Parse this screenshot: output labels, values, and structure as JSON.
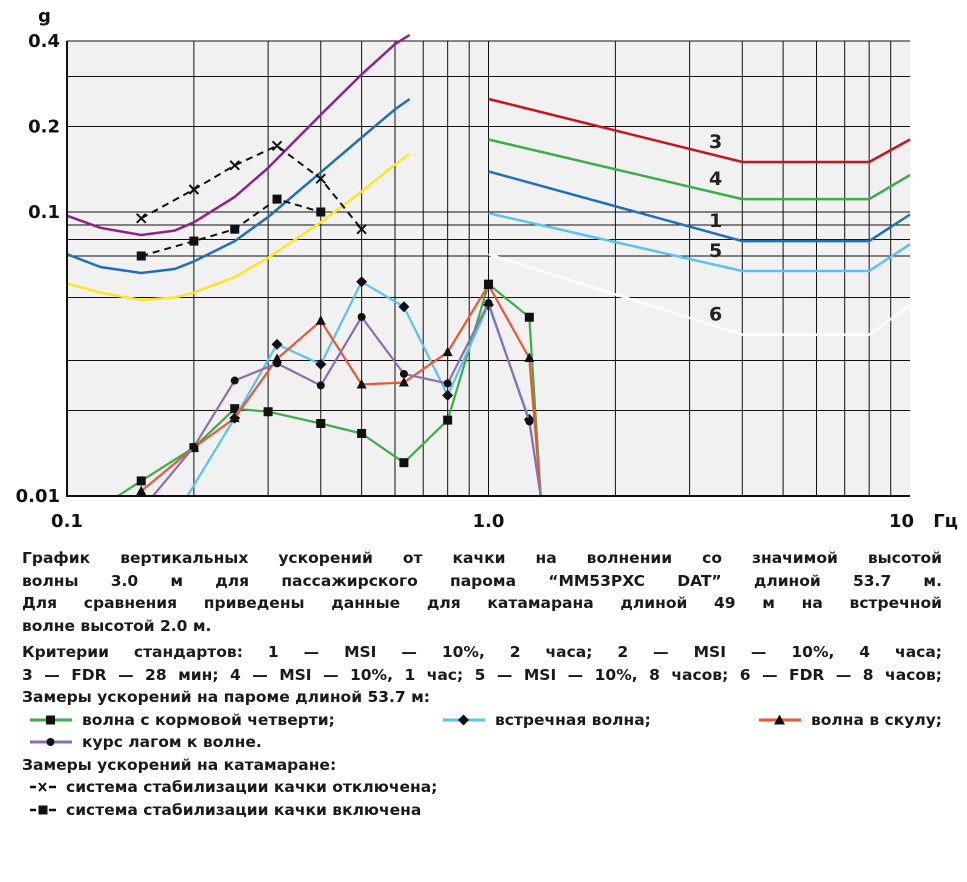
{
  "chart_data": {
    "type": "line",
    "y_unit": "g",
    "x_unit": "Гц",
    "x_scale": "log",
    "y_scale": "log",
    "xlim": [
      0.1,
      10
    ],
    "ylim": [
      0.01,
      0.4
    ],
    "x_ticks": [
      {
        "value": 0.1,
        "label": "0.1"
      },
      {
        "value": 1.0,
        "label": "1.0"
      },
      {
        "value": 10,
        "label": "10"
      }
    ],
    "y_ticks": [
      {
        "value": 0.4,
        "label": "0.4"
      },
      {
        "value": 0.2,
        "label": "0.2"
      },
      {
        "value": 0.1,
        "label": "0.1"
      },
      {
        "value": 0.01,
        "label": "0.01"
      }
    ],
    "criteria": [
      {
        "label": "3",
        "color": "#c8141e",
        "x": [
          1.0,
          4.0,
          8.0,
          10.0
        ],
        "y": [
          0.25,
          0.15,
          0.15,
          0.18
        ]
      },
      {
        "label": "4",
        "color": "#3aae49",
        "x": [
          1.0,
          4.0,
          8.0,
          10.0
        ],
        "y": [
          0.18,
          0.111,
          0.111,
          0.135
        ]
      },
      {
        "label": "1",
        "color": "#1f6fba",
        "x": [
          1.0,
          4.0,
          8.0,
          10.0
        ],
        "y": [
          0.139,
          0.079,
          0.079,
          0.098
        ]
      },
      {
        "label": "5",
        "color": "#5ac3ee",
        "x": [
          1.0,
          4.0,
          8.0,
          10.0
        ],
        "y": [
          0.099,
          0.062,
          0.062,
          0.077
        ]
      },
      {
        "label": "6",
        "color": "#ffffff",
        "x": [
          1.0,
          4.0,
          8.0,
          10.0
        ],
        "y": [
          0.071,
          0.037,
          0.037,
          0.047
        ]
      }
    ],
    "curves": [
      {
        "color": "#8e2389",
        "x": [
          0.1,
          0.12,
          0.15,
          0.18,
          0.2,
          0.25,
          0.3,
          0.4,
          0.5,
          0.6,
          0.65
        ],
        "y": [
          0.097,
          0.088,
          0.083,
          0.086,
          0.092,
          0.113,
          0.143,
          0.22,
          0.305,
          0.39,
          0.42
        ]
      },
      {
        "color": "#1f6fba",
        "x": [
          0.1,
          0.12,
          0.15,
          0.18,
          0.2,
          0.25,
          0.3,
          0.4,
          0.5,
          0.6,
          0.65
        ],
        "y": [
          0.071,
          0.064,
          0.061,
          0.063,
          0.067,
          0.079,
          0.096,
          0.138,
          0.183,
          0.23,
          0.25
        ]
      },
      {
        "color": "#ffe422",
        "x": [
          0.1,
          0.12,
          0.15,
          0.18,
          0.2,
          0.25,
          0.3,
          0.4,
          0.5,
          0.6,
          0.65
        ],
        "y": [
          0.056,
          0.052,
          0.049,
          0.05,
          0.052,
          0.059,
          0.069,
          0.092,
          0.118,
          0.147,
          0.16
        ]
      }
    ],
    "series": [
      {
        "name": "волна с кормовой четверти",
        "color": "#3aae49",
        "marker": "square",
        "x": [
          0.132,
          0.15,
          0.2,
          0.25,
          0.3,
          0.4,
          0.5,
          0.63,
          0.8,
          1.0,
          1.25,
          1.33,
          1.35
        ],
        "y": [
          0.01,
          0.0113,
          0.0148,
          0.0203,
          0.0198,
          0.018,
          0.0166,
          0.0131,
          0.0185,
          0.0557,
          0.0426,
          0.0093,
          0.0073
        ],
        "markers": [
          false,
          true,
          true,
          true,
          true,
          true,
          true,
          true,
          true,
          true,
          true,
          false,
          false
        ]
      },
      {
        "name": "встречная волна",
        "color": "#5ac3ee",
        "marker": "diamond",
        "x": [
          0.193,
          0.25,
          0.315,
          0.4,
          0.5,
          0.63,
          0.8,
          1.0,
          1.25,
          1.33
        ],
        "y": [
          0.01,
          0.0188,
          0.0342,
          0.0291,
          0.0568,
          0.0464,
          0.0226,
          0.0471,
          0.0186,
          0.0073
        ],
        "markers": [
          false,
          true,
          true,
          true,
          true,
          true,
          true,
          true,
          true,
          false
        ]
      },
      {
        "name": "волна в скулу",
        "color": "#ed5535",
        "marker": "triangle",
        "x": [
          0.147,
          0.15,
          0.2,
          0.25,
          0.315,
          0.4,
          0.5,
          0.63,
          0.8,
          1.0,
          1.25,
          1.33
        ],
        "y": [
          0.0101,
          0.0104,
          0.0148,
          0.0188,
          0.0304,
          0.0414,
          0.0247,
          0.0251,
          0.0321,
          0.0553,
          0.0306,
          0.0073
        ],
        "markers": [
          false,
          true,
          true,
          true,
          true,
          true,
          true,
          true,
          true,
          true,
          true,
          false
        ]
      },
      {
        "name": "курс лагом к волне",
        "color": "#8c6fb1",
        "marker": "circle",
        "x": [
          0.16,
          0.2,
          0.25,
          0.315,
          0.4,
          0.5,
          0.63,
          0.8,
          1.0,
          1.25,
          1.33
        ],
        "y": [
          0.01,
          0.0149,
          0.0255,
          0.0293,
          0.0245,
          0.0427,
          0.0269,
          0.0249,
          0.0478,
          0.0183,
          0.0073
        ],
        "markers": [
          false,
          true,
          true,
          true,
          true,
          true,
          true,
          true,
          true,
          true,
          false
        ]
      },
      {
        "name": "система стабилизации качки отключена",
        "color": "#111111",
        "marker": "x",
        "dashed": true,
        "x": [
          0.15,
          0.2,
          0.25,
          0.315,
          0.4,
          0.5
        ],
        "y": [
          0.095,
          0.12,
          0.146,
          0.171,
          0.131,
          0.087
        ]
      },
      {
        "name": "система стабилизации качки включена",
        "color": "#111111",
        "marker": "square",
        "dashed": true,
        "x": [
          0.15,
          0.2,
          0.25,
          0.315,
          0.4
        ],
        "y": [
          0.07,
          0.079,
          0.087,
          0.111,
          0.1
        ]
      }
    ]
  },
  "caption": {
    "title_line1": "График вертикальных ускорений от качки на волнении со значимой высотой",
    "title_line2": "волны 3.0 м для пассажирского парома “MM53PXC DAT” длиной 53.7 м.",
    "title_line3": "Для сравнения приведены данные для катамарана длиной 49 м на встречной",
    "title_line4": "волне высотой 2.0 м.",
    "criteria_line1": "Критерии стандартов: 1 — MSI — 10%, 2 часа; 2 — MSI — 10%, 4 часа;",
    "criteria_line2": "3 — FDR — 28 мин; 4 — MSI — 10%, 1 час; 5 — MSI — 10%, 8 часов; 6 — FDR — 8 часов;",
    "ferry_heading": "Замеры ускорений на пароме длиной 53.7 м:",
    "leg_stern": "волна с кормовой четверти;",
    "leg_head": "встречная волна;",
    "leg_bow": "волна в скулу;",
    "leg_beam": "курс лагом к волне.",
    "cat_heading": "Замеры ускорений на катамаране:",
    "leg_off": "система стабилизации качки отключена;",
    "leg_on": "система стабилизации качки включена"
  }
}
